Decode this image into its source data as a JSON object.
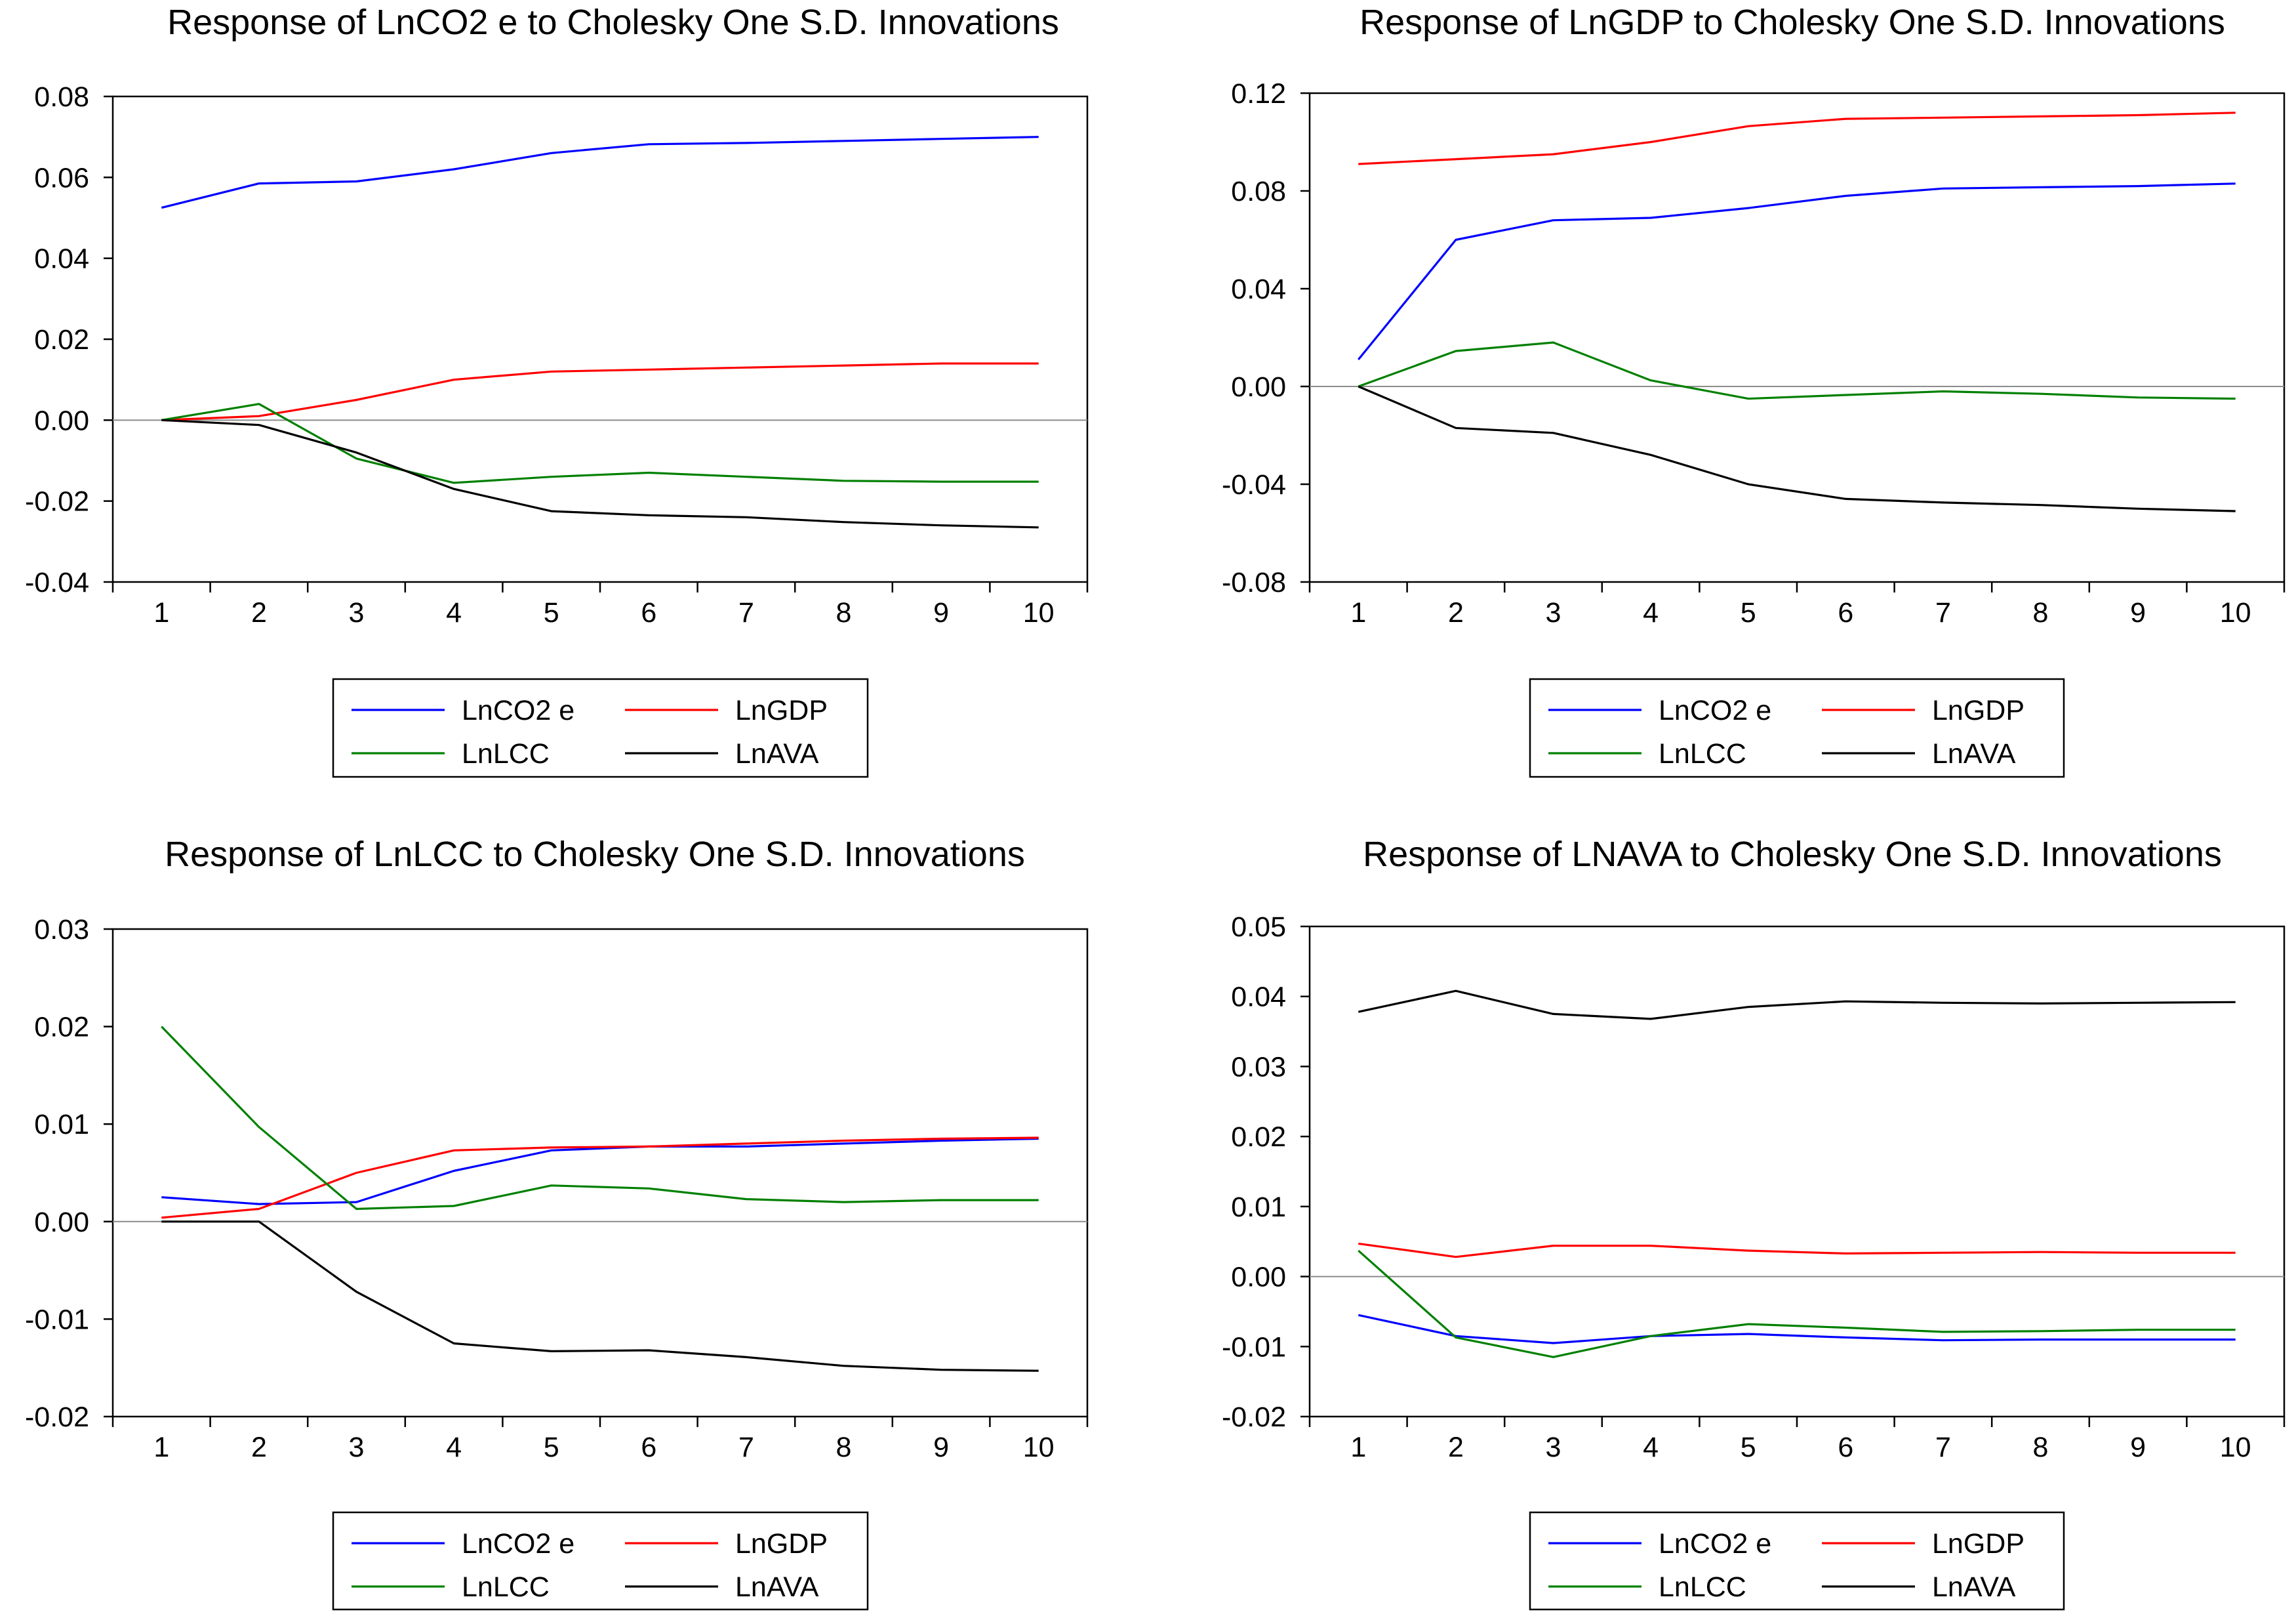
{
  "chart_data": [
    {
      "type": "line",
      "title": "Response of LnCO2 e to Cholesky One S.D. Innovations",
      "xlabel": "",
      "ylabel": "",
      "categories": [
        "1",
        "2",
        "3",
        "4",
        "5",
        "6",
        "7",
        "8",
        "9",
        "10"
      ],
      "ylim": [
        -0.04,
        0.08
      ],
      "yticks": [
        "0.08",
        "0.06",
        "0.04",
        "0.02",
        "0.00",
        "-0.02",
        "-0.04"
      ],
      "ytick_values": [
        0.08,
        0.06,
        0.04,
        0.02,
        0.0,
        -0.02,
        -0.04
      ],
      "zero_line": true,
      "series": [
        {
          "name": "LnCO2 e",
          "color": "#0000ff",
          "values": [
            0.0525,
            0.0585,
            0.059,
            0.062,
            0.066,
            0.0682,
            0.0685,
            0.069,
            0.0695,
            0.07
          ]
        },
        {
          "name": "LnGDP",
          "color": "#ff0000",
          "values": [
            0.0,
            0.001,
            0.005,
            0.01,
            0.012,
            0.0125,
            0.013,
            0.0135,
            0.014,
            0.014
          ]
        },
        {
          "name": "LnLCC",
          "color": "#008000",
          "values": [
            0.0,
            0.004,
            -0.0095,
            -0.0155,
            -0.014,
            -0.013,
            -0.014,
            -0.015,
            -0.0152,
            -0.0152
          ]
        },
        {
          "name": "LnAVA",
          "color": "#000000",
          "values": [
            0.0,
            -0.0012,
            -0.008,
            -0.017,
            -0.0225,
            -0.0235,
            -0.024,
            -0.0252,
            -0.026,
            -0.0265
          ]
        }
      ],
      "legend": {
        "entries": [
          "LnCO2 e",
          "LnGDP",
          "LnLCC",
          "LnAVA"
        ],
        "placement": "bottom"
      }
    },
    {
      "type": "line",
      "title": "Response of LnGDP to Cholesky One S.D. Innovations",
      "xlabel": "",
      "ylabel": "",
      "categories": [
        "1",
        "2",
        "3",
        "4",
        "5",
        "6",
        "7",
        "8",
        "9",
        "10"
      ],
      "ylim": [
        -0.08,
        0.12
      ],
      "yticks": [
        "0.12",
        "0.08",
        "0.04",
        "0.00",
        "-0.04",
        "-0.08"
      ],
      "ytick_values": [
        0.12,
        0.08,
        0.04,
        0.0,
        -0.04,
        -0.08
      ],
      "zero_line": true,
      "series": [
        {
          "name": "LnCO2 e",
          "color": "#0000ff",
          "values": [
            0.011,
            0.06,
            0.068,
            0.069,
            0.073,
            0.078,
            0.081,
            0.0815,
            0.082,
            0.083
          ]
        },
        {
          "name": "LnGDP",
          "color": "#ff0000",
          "values": [
            0.091,
            0.093,
            0.095,
            0.1,
            0.1065,
            0.1095,
            0.11,
            0.1105,
            0.111,
            0.112
          ]
        },
        {
          "name": "LnLCC",
          "color": "#008000",
          "values": [
            0.0,
            0.0145,
            0.018,
            0.0025,
            -0.005,
            -0.0035,
            -0.002,
            -0.003,
            -0.0045,
            -0.005
          ]
        },
        {
          "name": "LnAVA",
          "color": "#000000",
          "values": [
            0.0,
            -0.017,
            -0.019,
            -0.028,
            -0.04,
            -0.046,
            -0.0475,
            -0.0485,
            -0.05,
            -0.051
          ]
        }
      ],
      "legend": {
        "entries": [
          "LnCO2 e",
          "LnGDP",
          "LnLCC",
          "LnAVA"
        ],
        "placement": "bottom"
      }
    },
    {
      "type": "line",
      "title": "Response of LnLCC to Cholesky One S.D. Innovations",
      "xlabel": "",
      "ylabel": "",
      "categories": [
        "1",
        "2",
        "3",
        "4",
        "5",
        "6",
        "7",
        "8",
        "9",
        "10"
      ],
      "ylim": [
        -0.02,
        0.03
      ],
      "yticks": [
        "0.03",
        "0.02",
        "0.01",
        "0.00",
        "-0.01",
        "-0.02"
      ],
      "ytick_values": [
        0.03,
        0.02,
        0.01,
        0.0,
        -0.01,
        -0.02
      ],
      "zero_line": true,
      "series": [
        {
          "name": "LnCO2 e",
          "color": "#0000ff",
          "values": [
            0.0025,
            0.0018,
            0.002,
            0.0052,
            0.0073,
            0.0077,
            0.0077,
            0.008,
            0.0083,
            0.0085
          ]
        },
        {
          "name": "LnGDP",
          "color": "#ff0000",
          "values": [
            0.0004,
            0.0013,
            0.005,
            0.0073,
            0.0076,
            0.0077,
            0.008,
            0.0083,
            0.0085,
            0.0086
          ]
        },
        {
          "name": "LnLCC",
          "color": "#008000",
          "values": [
            0.02,
            0.0097,
            0.0013,
            0.0016,
            0.0037,
            0.0034,
            0.0023,
            0.002,
            0.0022,
            0.0022
          ]
        },
        {
          "name": "LnAVA",
          "color": "#000000",
          "values": [
            0.0,
            0.0,
            -0.0072,
            -0.0125,
            -0.0133,
            -0.0132,
            -0.0139,
            -0.0148,
            -0.0152,
            -0.0153
          ]
        }
      ],
      "legend": {
        "entries": [
          "LnCO2 e",
          "LnGDP",
          "LnLCC",
          "LnAVA"
        ],
        "placement": "bottom"
      }
    },
    {
      "type": "line",
      "title": "Response of LNAVA to Cholesky One S.D. Innovations",
      "xlabel": "",
      "ylabel": "",
      "categories": [
        "1",
        "2",
        "3",
        "4",
        "5",
        "6",
        "7",
        "8",
        "9",
        "10"
      ],
      "ylim": [
        -0.02,
        0.05
      ],
      "yticks": [
        "0.05",
        "0.04",
        "0.03",
        "0.02",
        "0.01",
        "0.00",
        "-0.01",
        "-0.02"
      ],
      "ytick_values": [
        0.05,
        0.04,
        0.03,
        0.02,
        0.01,
        0.0,
        -0.01,
        -0.02
      ],
      "zero_line": true,
      "series": [
        {
          "name": "LnCO2 e",
          "color": "#0000ff",
          "values": [
            -0.0055,
            -0.0085,
            -0.0095,
            -0.0085,
            -0.0082,
            -0.0087,
            -0.0091,
            -0.009,
            -0.009,
            -0.009
          ]
        },
        {
          "name": "LnGDP",
          "color": "#ff0000",
          "values": [
            0.0047,
            0.0028,
            0.0044,
            0.0044,
            0.0037,
            0.0033,
            0.0034,
            0.0035,
            0.0034,
            0.0034
          ]
        },
        {
          "name": "LnLCC",
          "color": "#008000",
          "values": [
            0.0037,
            -0.0087,
            -0.0115,
            -0.0085,
            -0.0068,
            -0.0073,
            -0.0079,
            -0.0078,
            -0.0076,
            -0.0076
          ]
        },
        {
          "name": "LnAVA",
          "color": "#000000",
          "values": [
            0.0378,
            0.0408,
            0.0375,
            0.0368,
            0.0385,
            0.0393,
            0.0391,
            0.039,
            0.0391,
            0.0392
          ]
        }
      ],
      "legend": {
        "entries": [
          "LnCO2 e",
          "LnGDP",
          "LnLCC",
          "LnAVA"
        ],
        "placement": "bottom"
      }
    }
  ]
}
